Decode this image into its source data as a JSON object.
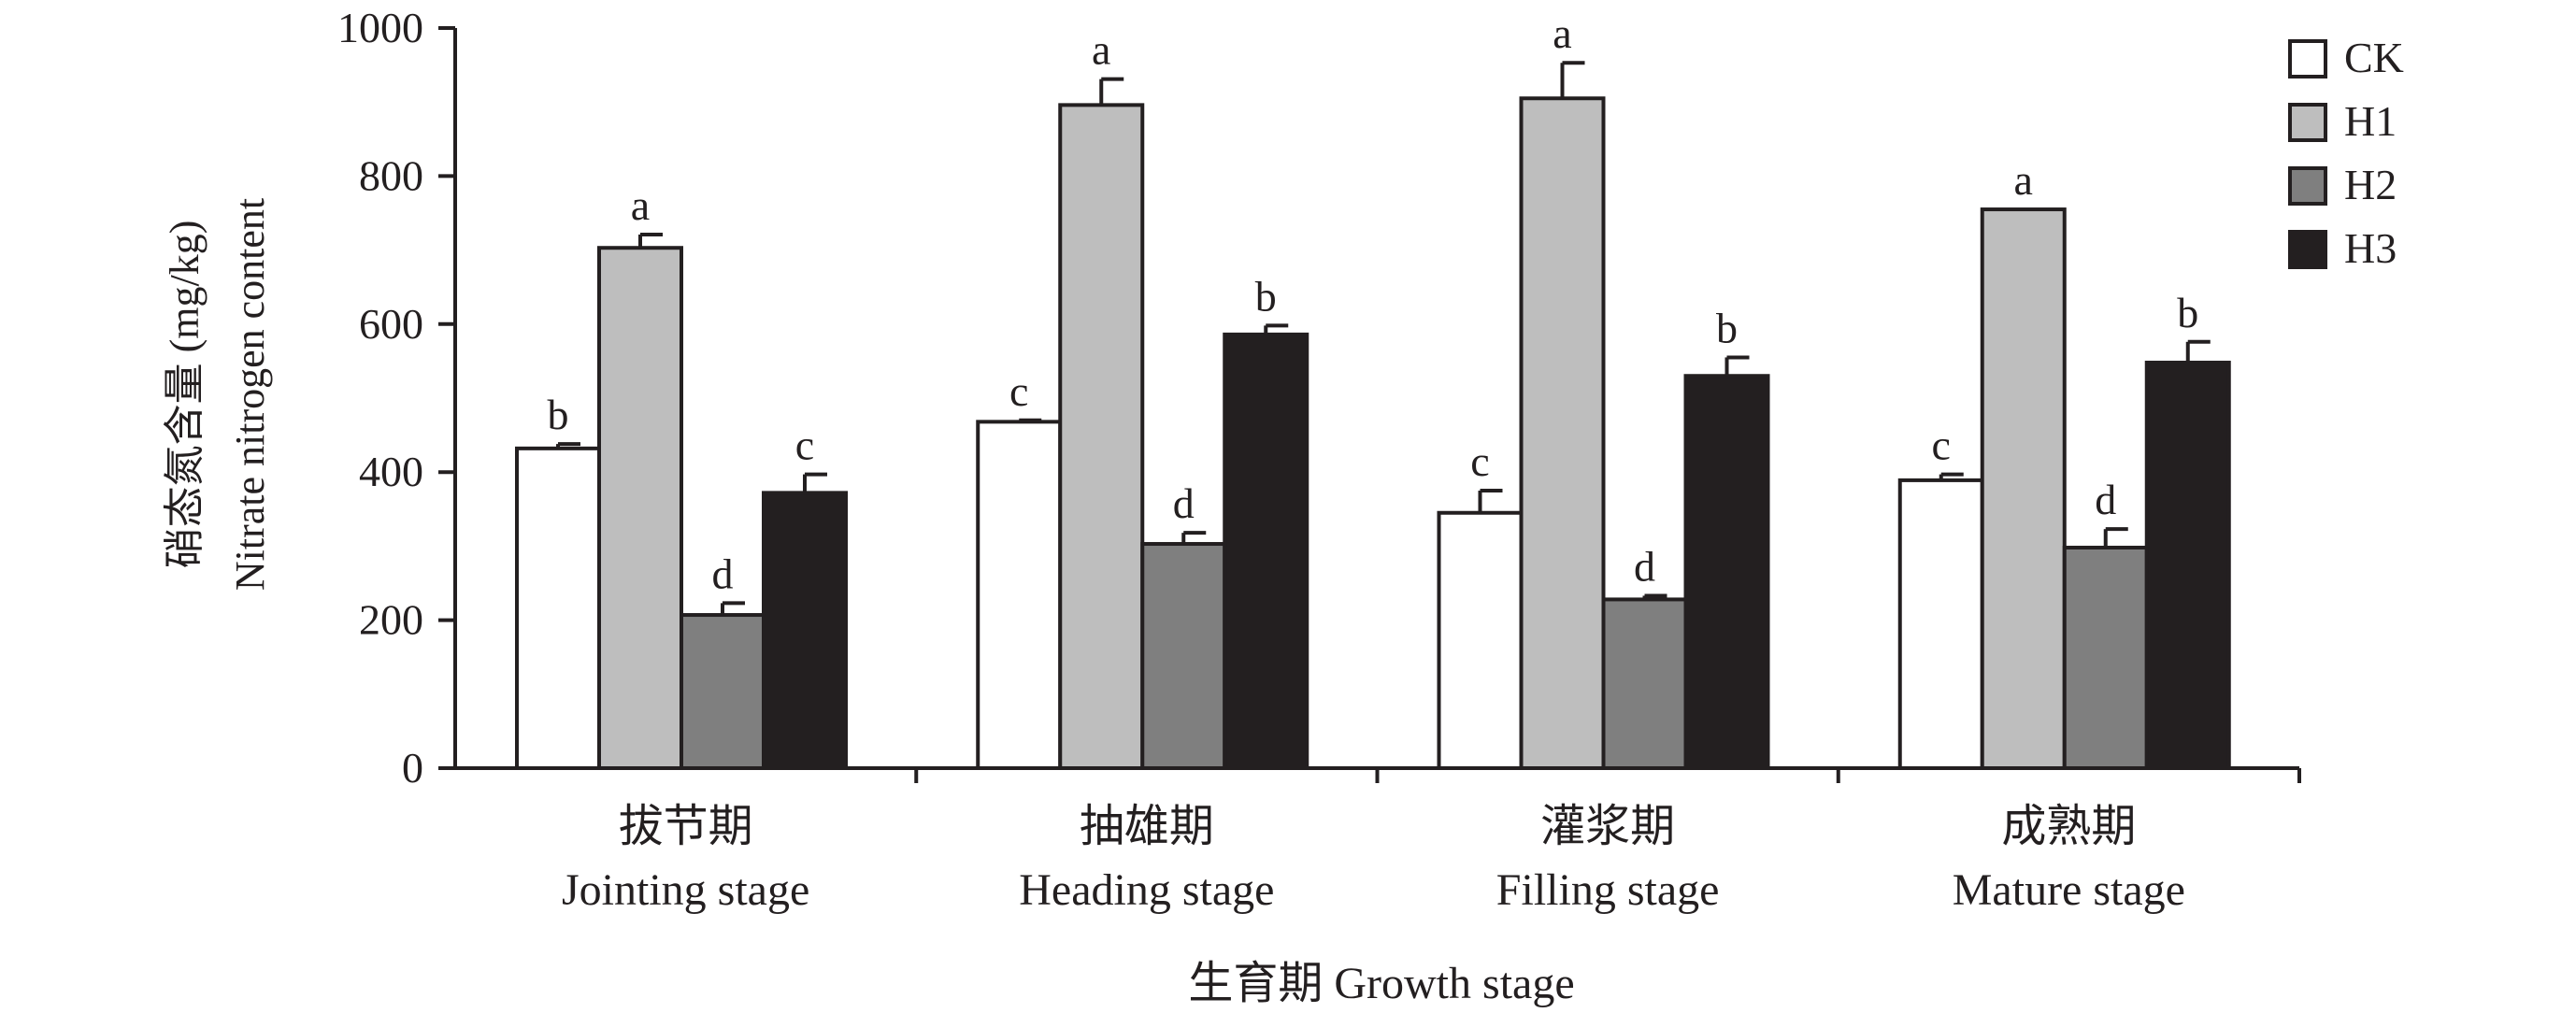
{
  "chart_data": {
    "type": "bar",
    "title": "",
    "ylabel_cn": "硝态氮含量 (mg/kg)",
    "ylabel_en": "Nitrate nitrogen content",
    "xlabel": "生育期 Growth stage",
    "ylim": [
      0,
      1000
    ],
    "yticks": [
      "0",
      "200",
      "400",
      "600",
      "800",
      "1000"
    ],
    "categories": [
      {
        "cn": "拔节期",
        "en": "Jointing stage"
      },
      {
        "cn": "抽雄期",
        "en": "Heading stage"
      },
      {
        "cn": "灌浆期",
        "en": "Filling stage"
      },
      {
        "cn": "成熟期",
        "en": "Mature stage"
      }
    ],
    "series": [
      {
        "name": "CK",
        "color": "#ffffff",
        "values": [
          432,
          468,
          345,
          389
        ],
        "errors": [
          6,
          2,
          30,
          8
        ],
        "letters": [
          "b",
          "c",
          "c",
          "c"
        ]
      },
      {
        "name": "H1",
        "color": "#bebebe",
        "values": [
          703,
          896,
          905,
          755
        ],
        "errors": [
          18,
          35,
          48,
          0
        ],
        "letters": [
          "a",
          "a",
          "a",
          "a"
        ]
      },
      {
        "name": "H2",
        "color": "#7f7f7f",
        "values": [
          207,
          303,
          228,
          298
        ],
        "errors": [
          16,
          15,
          5,
          25
        ],
        "letters": [
          "d",
          "d",
          "d",
          "d"
        ]
      },
      {
        "name": "H3",
        "color": "#231f20",
        "values": [
          372,
          586,
          530,
          548
        ],
        "errors": [
          25,
          12,
          25,
          28
        ],
        "letters": [
          "c",
          "b",
          "b",
          "b"
        ]
      }
    ],
    "grid": false,
    "legend_position": "top-right"
  }
}
